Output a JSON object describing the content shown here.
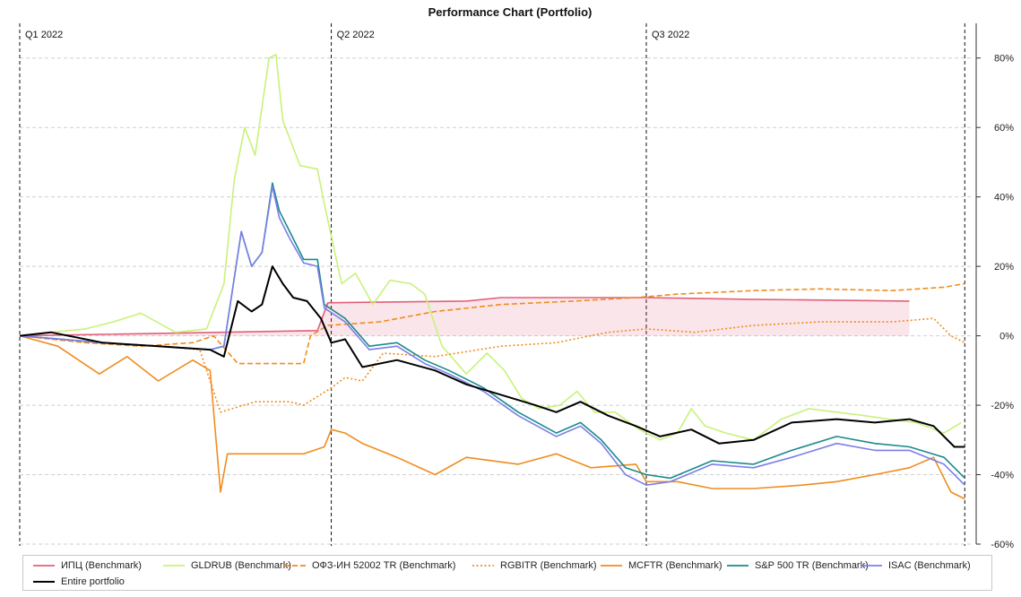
{
  "chart_data": {
    "type": "line",
    "title": "Performance Chart (Portfolio)",
    "xlabel": "",
    "ylabel": "",
    "x_range": [
      "2022-01-01",
      "2022-10-03"
    ],
    "ylim": [
      -60,
      90
    ],
    "y_ticks": [
      80,
      60,
      40,
      20,
      0,
      -20,
      -40,
      -60
    ],
    "y_tick_labels": [
      "80%",
      "60%",
      "40%",
      "20%",
      "0%",
      "-20%",
      "-40%",
      "-60%"
    ],
    "grid": true,
    "legend_position": "bottom",
    "quarter_markers": [
      {
        "date": "2022-01-01",
        "label": "Q1 2022"
      },
      {
        "date": "2022-04-01",
        "label": "Q2 2022"
      },
      {
        "date": "2022-07-01",
        "label": "Q3 2022"
      },
      {
        "date": "2022-10-01",
        "label": ""
      }
    ],
    "series": [
      {
        "name": "ИПЦ (Benchmark)",
        "color": "#e0607a",
        "style": "solid",
        "shade_to_zero": true,
        "points": [
          [
            "2022-01-01",
            0
          ],
          [
            "2022-03-28",
            1.5
          ],
          [
            "2022-03-31",
            9.5
          ],
          [
            "2022-05-10",
            10
          ],
          [
            "2022-05-20",
            11
          ],
          [
            "2022-06-30",
            11
          ],
          [
            "2022-07-31",
            10.5
          ],
          [
            "2022-09-15",
            10
          ]
        ]
      },
      {
        "name": "GLDRUB (Benchmark)",
        "color": "#c8f27a",
        "style": "solid",
        "points": [
          [
            "2022-01-01",
            0
          ],
          [
            "2022-01-10",
            1
          ],
          [
            "2022-01-20",
            2
          ],
          [
            "2022-01-28",
            4
          ],
          [
            "2022-02-05",
            6.5
          ],
          [
            "2022-02-15",
            1
          ],
          [
            "2022-02-24",
            2
          ],
          [
            "2022-03-01",
            15
          ],
          [
            "2022-03-04",
            45
          ],
          [
            "2022-03-07",
            60
          ],
          [
            "2022-03-10",
            52
          ],
          [
            "2022-03-14",
            80
          ],
          [
            "2022-03-16",
            81
          ],
          [
            "2022-03-18",
            62
          ],
          [
            "2022-03-23",
            49
          ],
          [
            "2022-03-28",
            48
          ],
          [
            "2022-03-30",
            38
          ],
          [
            "2022-04-04",
            15
          ],
          [
            "2022-04-08",
            18
          ],
          [
            "2022-04-13",
            9
          ],
          [
            "2022-04-18",
            16
          ],
          [
            "2022-04-24",
            15
          ],
          [
            "2022-04-28",
            12
          ],
          [
            "2022-05-03",
            -3
          ],
          [
            "2022-05-10",
            -11
          ],
          [
            "2022-05-16",
            -5
          ],
          [
            "2022-05-21",
            -10
          ],
          [
            "2022-05-26",
            -18
          ],
          [
            "2022-05-31",
            -21
          ],
          [
            "2022-06-06",
            -20
          ],
          [
            "2022-06-11",
            -16
          ],
          [
            "2022-06-16",
            -22
          ],
          [
            "2022-06-22",
            -22
          ],
          [
            "2022-06-29",
            -27
          ],
          [
            "2022-07-05",
            -30
          ],
          [
            "2022-07-10",
            -28
          ],
          [
            "2022-07-14",
            -21
          ],
          [
            "2022-07-18",
            -26
          ],
          [
            "2022-07-24",
            -28
          ],
          [
            "2022-08-01",
            -30
          ],
          [
            "2022-08-09",
            -24
          ],
          [
            "2022-08-17",
            -21
          ],
          [
            "2022-08-25",
            -22
          ],
          [
            "2022-09-02",
            -23
          ],
          [
            "2022-09-09",
            -24
          ],
          [
            "2022-09-17",
            -25
          ],
          [
            "2022-09-25",
            -28
          ],
          [
            "2022-09-30",
            -25
          ]
        ]
      },
      {
        "name": "ОФЗ-ИН 52002 TR (Benchmark)",
        "color": "#f08c1e",
        "style": "dashed",
        "points": [
          [
            "2022-01-01",
            0
          ],
          [
            "2022-01-20",
            -2
          ],
          [
            "2022-02-05",
            -3
          ],
          [
            "2022-02-20",
            -2
          ],
          [
            "2022-02-26",
            0
          ],
          [
            "2022-03-05",
            -8
          ],
          [
            "2022-03-24",
            -8
          ],
          [
            "2022-03-26",
            0
          ],
          [
            "2022-03-31",
            3
          ],
          [
            "2022-04-15",
            4
          ],
          [
            "2022-05-01",
            7
          ],
          [
            "2022-05-20",
            9
          ],
          [
            "2022-06-10",
            10
          ],
          [
            "2022-06-28",
            11
          ],
          [
            "2022-07-10",
            12
          ],
          [
            "2022-08-01",
            13
          ],
          [
            "2022-08-20",
            13.5
          ],
          [
            "2022-09-10",
            13
          ],
          [
            "2022-09-25",
            14
          ],
          [
            "2022-10-01",
            15
          ]
        ]
      },
      {
        "name": "RGBITR (Benchmark)",
        "color": "#f08c1e",
        "style": "dotted",
        "points": [
          [
            "2022-01-01",
            0
          ],
          [
            "2022-01-20",
            -2
          ],
          [
            "2022-02-10",
            -3
          ],
          [
            "2022-02-22",
            -4
          ],
          [
            "2022-02-28",
            -22
          ],
          [
            "2022-03-10",
            -19
          ],
          [
            "2022-03-20",
            -19
          ],
          [
            "2022-03-24",
            -20
          ],
          [
            "2022-04-01",
            -15
          ],
          [
            "2022-04-05",
            -12
          ],
          [
            "2022-04-10",
            -13
          ],
          [
            "2022-04-16",
            -5
          ],
          [
            "2022-05-01",
            -6
          ],
          [
            "2022-05-20",
            -3
          ],
          [
            "2022-06-05",
            -2
          ],
          [
            "2022-06-20",
            1
          ],
          [
            "2022-07-01",
            2
          ],
          [
            "2022-07-15",
            1
          ],
          [
            "2022-08-01",
            3
          ],
          [
            "2022-08-20",
            4
          ],
          [
            "2022-09-10",
            4
          ],
          [
            "2022-09-22",
            5
          ],
          [
            "2022-09-27",
            0
          ],
          [
            "2022-10-01",
            -2
          ]
        ]
      },
      {
        "name": "MCFTR (Benchmark)",
        "color": "#f08c1e",
        "style": "solid",
        "points": [
          [
            "2022-01-01",
            0
          ],
          [
            "2022-01-12",
            -3
          ],
          [
            "2022-01-24",
            -11
          ],
          [
            "2022-02-01",
            -6
          ],
          [
            "2022-02-10",
            -13
          ],
          [
            "2022-02-20",
            -7
          ],
          [
            "2022-02-25",
            -10
          ],
          [
            "2022-02-28",
            -45
          ],
          [
            "2022-03-02",
            -34
          ],
          [
            "2022-03-24",
            -34
          ],
          [
            "2022-03-30",
            -32
          ],
          [
            "2022-04-01",
            -27
          ],
          [
            "2022-04-05",
            -28
          ],
          [
            "2022-04-10",
            -31
          ],
          [
            "2022-04-20",
            -35
          ],
          [
            "2022-05-01",
            -40
          ],
          [
            "2022-05-10",
            -35
          ],
          [
            "2022-05-25",
            -37
          ],
          [
            "2022-06-05",
            -34
          ],
          [
            "2022-06-15",
            -38
          ],
          [
            "2022-06-28",
            -37
          ],
          [
            "2022-07-01",
            -42
          ],
          [
            "2022-07-10",
            -42
          ],
          [
            "2022-07-20",
            -44
          ],
          [
            "2022-08-01",
            -44
          ],
          [
            "2022-08-15",
            -43
          ],
          [
            "2022-08-25",
            -42
          ],
          [
            "2022-09-05",
            -40
          ],
          [
            "2022-09-15",
            -38
          ],
          [
            "2022-09-22",
            -35
          ],
          [
            "2022-09-27",
            -45
          ],
          [
            "2022-10-01",
            -47
          ]
        ]
      },
      {
        "name": "S&P 500 TR (Benchmark)",
        "color": "#1a8a8a",
        "style": "solid",
        "points": [
          [
            "2022-01-01",
            0
          ],
          [
            "2022-01-25",
            -2
          ],
          [
            "2022-02-10",
            -3
          ],
          [
            "2022-02-25",
            -4
          ],
          [
            "2022-03-01",
            -3
          ],
          [
            "2022-03-06",
            30
          ],
          [
            "2022-03-09",
            20
          ],
          [
            "2022-03-12",
            24
          ],
          [
            "2022-03-15",
            44
          ],
          [
            "2022-03-17",
            36
          ],
          [
            "2022-03-20",
            30
          ],
          [
            "2022-03-24",
            22
          ],
          [
            "2022-03-28",
            22
          ],
          [
            "2022-03-30",
            9
          ],
          [
            "2022-04-05",
            5
          ],
          [
            "2022-04-12",
            -3
          ],
          [
            "2022-04-20",
            -2
          ],
          [
            "2022-04-28",
            -7
          ],
          [
            "2022-05-05",
            -10
          ],
          [
            "2022-05-15",
            -15
          ],
          [
            "2022-05-25",
            -22
          ],
          [
            "2022-06-05",
            -28
          ],
          [
            "2022-06-12",
            -25
          ],
          [
            "2022-06-18",
            -30
          ],
          [
            "2022-06-25",
            -38
          ],
          [
            "2022-07-01",
            -40
          ],
          [
            "2022-07-08",
            -41
          ],
          [
            "2022-07-20",
            -36
          ],
          [
            "2022-08-01",
            -37
          ],
          [
            "2022-08-12",
            -33
          ],
          [
            "2022-08-25",
            -29
          ],
          [
            "2022-09-05",
            -31
          ],
          [
            "2022-09-15",
            -32
          ],
          [
            "2022-09-25",
            -35
          ],
          [
            "2022-10-01",
            -41
          ]
        ]
      },
      {
        "name": "ISAC (Benchmark)",
        "color": "#7b7fe8",
        "style": "solid",
        "points": [
          [
            "2022-01-01",
            0
          ],
          [
            "2022-01-25",
            -2
          ],
          [
            "2022-02-10",
            -3
          ],
          [
            "2022-02-25",
            -4
          ],
          [
            "2022-03-01",
            -3
          ],
          [
            "2022-03-06",
            30
          ],
          [
            "2022-03-09",
            20
          ],
          [
            "2022-03-12",
            24
          ],
          [
            "2022-03-15",
            43
          ],
          [
            "2022-03-17",
            34
          ],
          [
            "2022-03-20",
            28
          ],
          [
            "2022-03-24",
            21
          ],
          [
            "2022-03-28",
            20
          ],
          [
            "2022-03-30",
            8
          ],
          [
            "2022-04-05",
            4
          ],
          [
            "2022-04-12",
            -4
          ],
          [
            "2022-04-20",
            -3
          ],
          [
            "2022-04-28",
            -8
          ],
          [
            "2022-05-05",
            -11
          ],
          [
            "2022-05-15",
            -16
          ],
          [
            "2022-05-25",
            -23
          ],
          [
            "2022-06-05",
            -29
          ],
          [
            "2022-06-12",
            -26
          ],
          [
            "2022-06-18",
            -31
          ],
          [
            "2022-06-25",
            -40
          ],
          [
            "2022-07-01",
            -43
          ],
          [
            "2022-07-08",
            -42
          ],
          [
            "2022-07-20",
            -37
          ],
          [
            "2022-08-01",
            -38
          ],
          [
            "2022-08-12",
            -35
          ],
          [
            "2022-08-25",
            -31
          ],
          [
            "2022-09-05",
            -33
          ],
          [
            "2022-09-15",
            -33
          ],
          [
            "2022-09-25",
            -37
          ],
          [
            "2022-10-01",
            -43
          ]
        ]
      },
      {
        "name": "Entire portfolio",
        "color": "#000000",
        "style": "solid",
        "points": [
          [
            "2022-01-01",
            0
          ],
          [
            "2022-01-10",
            1
          ],
          [
            "2022-01-25",
            -2
          ],
          [
            "2022-02-10",
            -3
          ],
          [
            "2022-02-25",
            -4
          ],
          [
            "2022-03-01",
            -6
          ],
          [
            "2022-03-05",
            10
          ],
          [
            "2022-03-09",
            7
          ],
          [
            "2022-03-12",
            9
          ],
          [
            "2022-03-15",
            20
          ],
          [
            "2022-03-18",
            15
          ],
          [
            "2022-03-21",
            11
          ],
          [
            "2022-03-25",
            10
          ],
          [
            "2022-03-29",
            5
          ],
          [
            "2022-04-01",
            -2
          ],
          [
            "2022-04-05",
            -1
          ],
          [
            "2022-04-10",
            -9
          ],
          [
            "2022-04-20",
            -7
          ],
          [
            "2022-05-01",
            -10
          ],
          [
            "2022-05-10",
            -14
          ],
          [
            "2022-05-20",
            -17
          ],
          [
            "2022-05-30",
            -20
          ],
          [
            "2022-06-05",
            -22
          ],
          [
            "2022-06-12",
            -19
          ],
          [
            "2022-06-20",
            -23
          ],
          [
            "2022-06-28",
            -26
          ],
          [
            "2022-07-05",
            -29
          ],
          [
            "2022-07-14",
            -27
          ],
          [
            "2022-07-22",
            -31
          ],
          [
            "2022-08-01",
            -30
          ],
          [
            "2022-08-12",
            -25
          ],
          [
            "2022-08-25",
            -24
          ],
          [
            "2022-09-05",
            -25
          ],
          [
            "2022-09-15",
            -24
          ],
          [
            "2022-09-22",
            -26
          ],
          [
            "2022-09-28",
            -32
          ],
          [
            "2022-10-01",
            -32
          ]
        ]
      }
    ]
  }
}
